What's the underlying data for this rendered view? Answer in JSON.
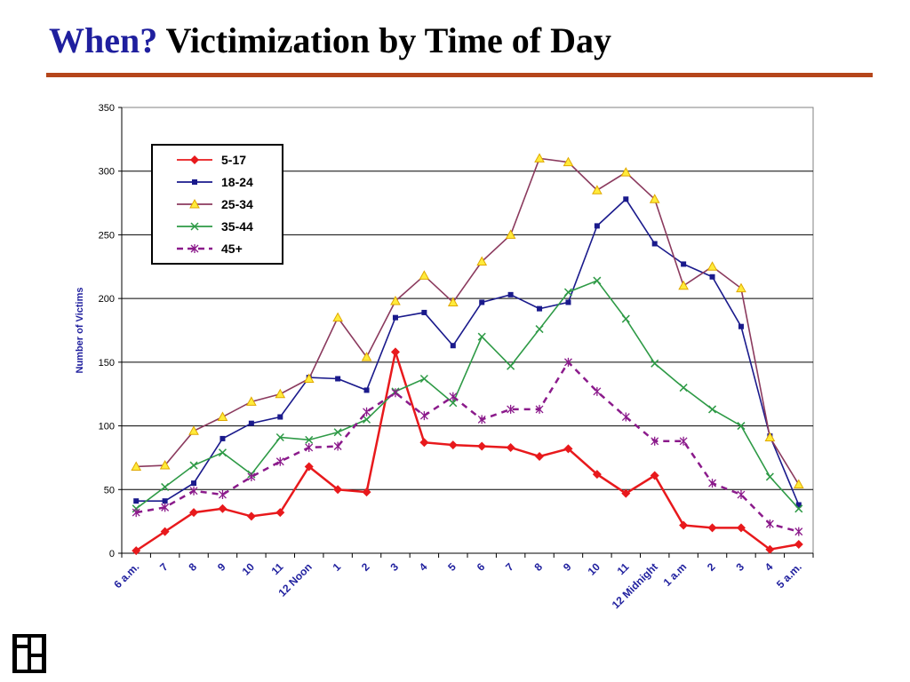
{
  "page": {
    "title_accent": "When?",
    "title_rest": "Victimization by Time of Day"
  },
  "colors": {
    "accent": "#1f1f9e",
    "rule": "#b5461b",
    "axis_text": "#1f1f9e"
  },
  "chart_data": {
    "type": "line",
    "title": "",
    "xlabel": "",
    "ylabel": "Number of Victims",
    "ylim": [
      0,
      350
    ],
    "yticks": [
      0,
      50,
      100,
      150,
      200,
      250,
      300,
      350
    ],
    "grid": true,
    "legend_position": "top-left",
    "categories": [
      "6 a.m.",
      "7",
      "8",
      "9",
      "10",
      "11",
      "12 Noon",
      "1",
      "2",
      "3",
      "4",
      "5",
      "6",
      "7",
      "8",
      "9",
      "10",
      "11",
      "12 Midnight",
      "1 a.m",
      "2",
      "3",
      "4",
      "5 a.m."
    ],
    "series": [
      {
        "name": "5-17",
        "color": "#e8191c",
        "marker": "diamond",
        "dash": false,
        "values": [
          2,
          17,
          32,
          35,
          29,
          32,
          68,
          50,
          48,
          158,
          87,
          85,
          84,
          83,
          76,
          82,
          62,
          47,
          61,
          22,
          20,
          20,
          3,
          7
        ]
      },
      {
        "name": "18-24",
        "color": "#1a1a8c",
        "marker": "square",
        "dash": false,
        "values": [
          41,
          41,
          55,
          90,
          102,
          107,
          138,
          137,
          128,
          185,
          189,
          163,
          197,
          203,
          192,
          197,
          257,
          278,
          243,
          227,
          217,
          178,
          92,
          38
        ]
      },
      {
        "name": "25-34",
        "color": "#8b3a5e",
        "marker": "triangle",
        "dash": false,
        "values": [
          68,
          69,
          96,
          107,
          119,
          125,
          137,
          185,
          154,
          198,
          218,
          197,
          229,
          250,
          310,
          307,
          285,
          299,
          278,
          210,
          225,
          208,
          91,
          54
        ]
      },
      {
        "name": "35-44",
        "color": "#2e9a46",
        "marker": "x",
        "dash": false,
        "values": [
          35,
          52,
          69,
          79,
          62,
          91,
          89,
          95,
          105,
          127,
          137,
          118,
          170,
          147,
          176,
          205,
          214,
          184,
          149,
          130,
          113,
          100,
          60,
          35
        ]
      },
      {
        "name": "45+",
        "color": "#8b1a8b",
        "marker": "star",
        "dash": true,
        "values": [
          32,
          36,
          49,
          46,
          60,
          72,
          83,
          84,
          111,
          126,
          108,
          123,
          105,
          113,
          113,
          150,
          127,
          107,
          88,
          88,
          55,
          46,
          23,
          17
        ]
      }
    ]
  }
}
